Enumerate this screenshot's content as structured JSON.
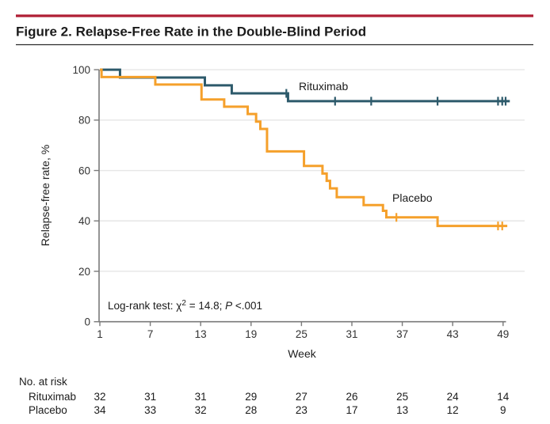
{
  "header": {
    "title": "Figure 2. Relapse-Free Rate in the Double-Blind Period",
    "rule_color": "#b01e35"
  },
  "chart_data": {
    "type": "line",
    "subtype": "kaplan-meier-step",
    "title": "Relapse-Free Rate in the Double-Blind Period",
    "xlabel": "Week",
    "ylabel": "Relapse-free rate, %",
    "xlim": [
      1,
      49
    ],
    "ylim": [
      0,
      100
    ],
    "x_ticks": [
      1,
      7,
      13,
      19,
      25,
      31,
      37,
      43,
      49
    ],
    "y_ticks": [
      0,
      20,
      40,
      60,
      80,
      100
    ],
    "grid": "horizontal-light",
    "legend_position": "inline-labels",
    "series": [
      {
        "name": "Rituximab",
        "color": "#2d5a6b",
        "start": [
          1,
          100
        ],
        "steps": [
          [
            3.4,
            96.9
          ],
          [
            13.5,
            93.8
          ],
          [
            16.7,
            90.6
          ],
          [
            23.4,
            87.5
          ]
        ],
        "end_week": 49.8,
        "final_value": 87.5,
        "censor_marks": [
          [
            23.2,
            90.6
          ],
          [
            29.0,
            87.5
          ],
          [
            33.3,
            87.5
          ],
          [
            41.2,
            87.5
          ],
          [
            48.4,
            87.5
          ],
          [
            48.9,
            87.5
          ],
          [
            49.3,
            87.5
          ]
        ]
      },
      {
        "name": "Placebo",
        "color": "#f5a02b",
        "start": [
          1,
          100
        ],
        "steps": [
          [
            1.2,
            97.1
          ],
          [
            7.6,
            94.1
          ],
          [
            13.1,
            88.2
          ],
          [
            15.8,
            85.3
          ],
          [
            18.6,
            82.4
          ],
          [
            19.6,
            79.4
          ],
          [
            20.1,
            76.5
          ],
          [
            20.9,
            67.6
          ],
          [
            25.3,
            61.8
          ],
          [
            27.5,
            58.8
          ],
          [
            28.0,
            55.9
          ],
          [
            28.4,
            52.9
          ],
          [
            29.2,
            49.4
          ],
          [
            32.4,
            46.3
          ],
          [
            34.7,
            44.0
          ],
          [
            35.1,
            41.4
          ],
          [
            41.2,
            38.0
          ]
        ],
        "end_week": 49.5,
        "final_value": 38.0,
        "censor_marks": [
          [
            36.3,
            41.4
          ],
          [
            48.4,
            38.0
          ],
          [
            48.9,
            38.0
          ]
        ]
      }
    ],
    "annotation": {
      "prefix": "Log-rank test: χ",
      "sup": "2",
      "mid": " = 14.8; ",
      "p_label": "P",
      "suffix": " <.001"
    },
    "at_risk": {
      "title": "No. at risk",
      "weeks": [
        1,
        7,
        13,
        19,
        25,
        31,
        37,
        43,
        49
      ],
      "rows": [
        {
          "name": "Rituximab",
          "counts": [
            32,
            31,
            31,
            29,
            27,
            26,
            25,
            24,
            14
          ]
        },
        {
          "name": "Placebo",
          "counts": [
            34,
            33,
            32,
            28,
            23,
            17,
            13,
            12,
            9
          ]
        }
      ]
    }
  },
  "colors": {
    "rituximab": "#2d5a6b",
    "placebo": "#f5a02b",
    "header_rule": "#b01e35",
    "grid": "#e6e6e6",
    "axis": "#7a7a7a"
  }
}
